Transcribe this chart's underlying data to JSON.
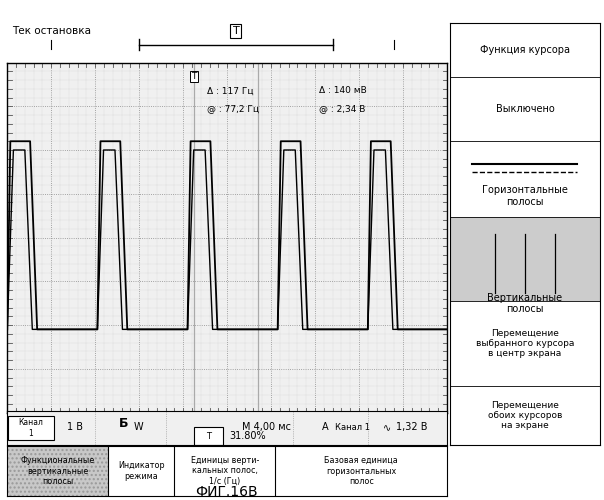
{
  "title_top": "Тек остановка",
  "fig_label": "ФИГ.16В",
  "scope_bg": "#f0f0f0",
  "cursor_info_1": "Δ : 117 Гц",
  "cursor_info_2": "@ : 77,2 Гц",
  "cursor_info_3": "Δ : 140 мВ",
  "cursor_info_4": "@ : 2,34 В",
  "right_title": "Функция курсора",
  "right_s1": "Выключено",
  "right_s2": "Горизонтальные\nполосы",
  "right_s3": "Вертикальные\nполосы",
  "right_s4": "Перемещение\nвыбранного курсора\nв центр экрана",
  "right_s5": "Перемещение\nобоих курсоров\nна экране",
  "bot_col1": "Функциональные\nвертикальные\nполосы",
  "bot_col2": "Индикатор\nрежима",
  "bot_col3": "Единицы верти-\nкальных полос,\n1/с (Гц)",
  "bot_col4": "Базовая единица\nгоризонтальных\nполос",
  "status_ch": "Канал\n1",
  "status_1v": "1 В",
  "status_bw": "Б",
  "status_w": "W",
  "status_m": "М 4,00 мс",
  "status_a": "А",
  "status_ch1": "Канал 1",
  "status_v2": "1,32 В",
  "trig_pct": "31.80%"
}
